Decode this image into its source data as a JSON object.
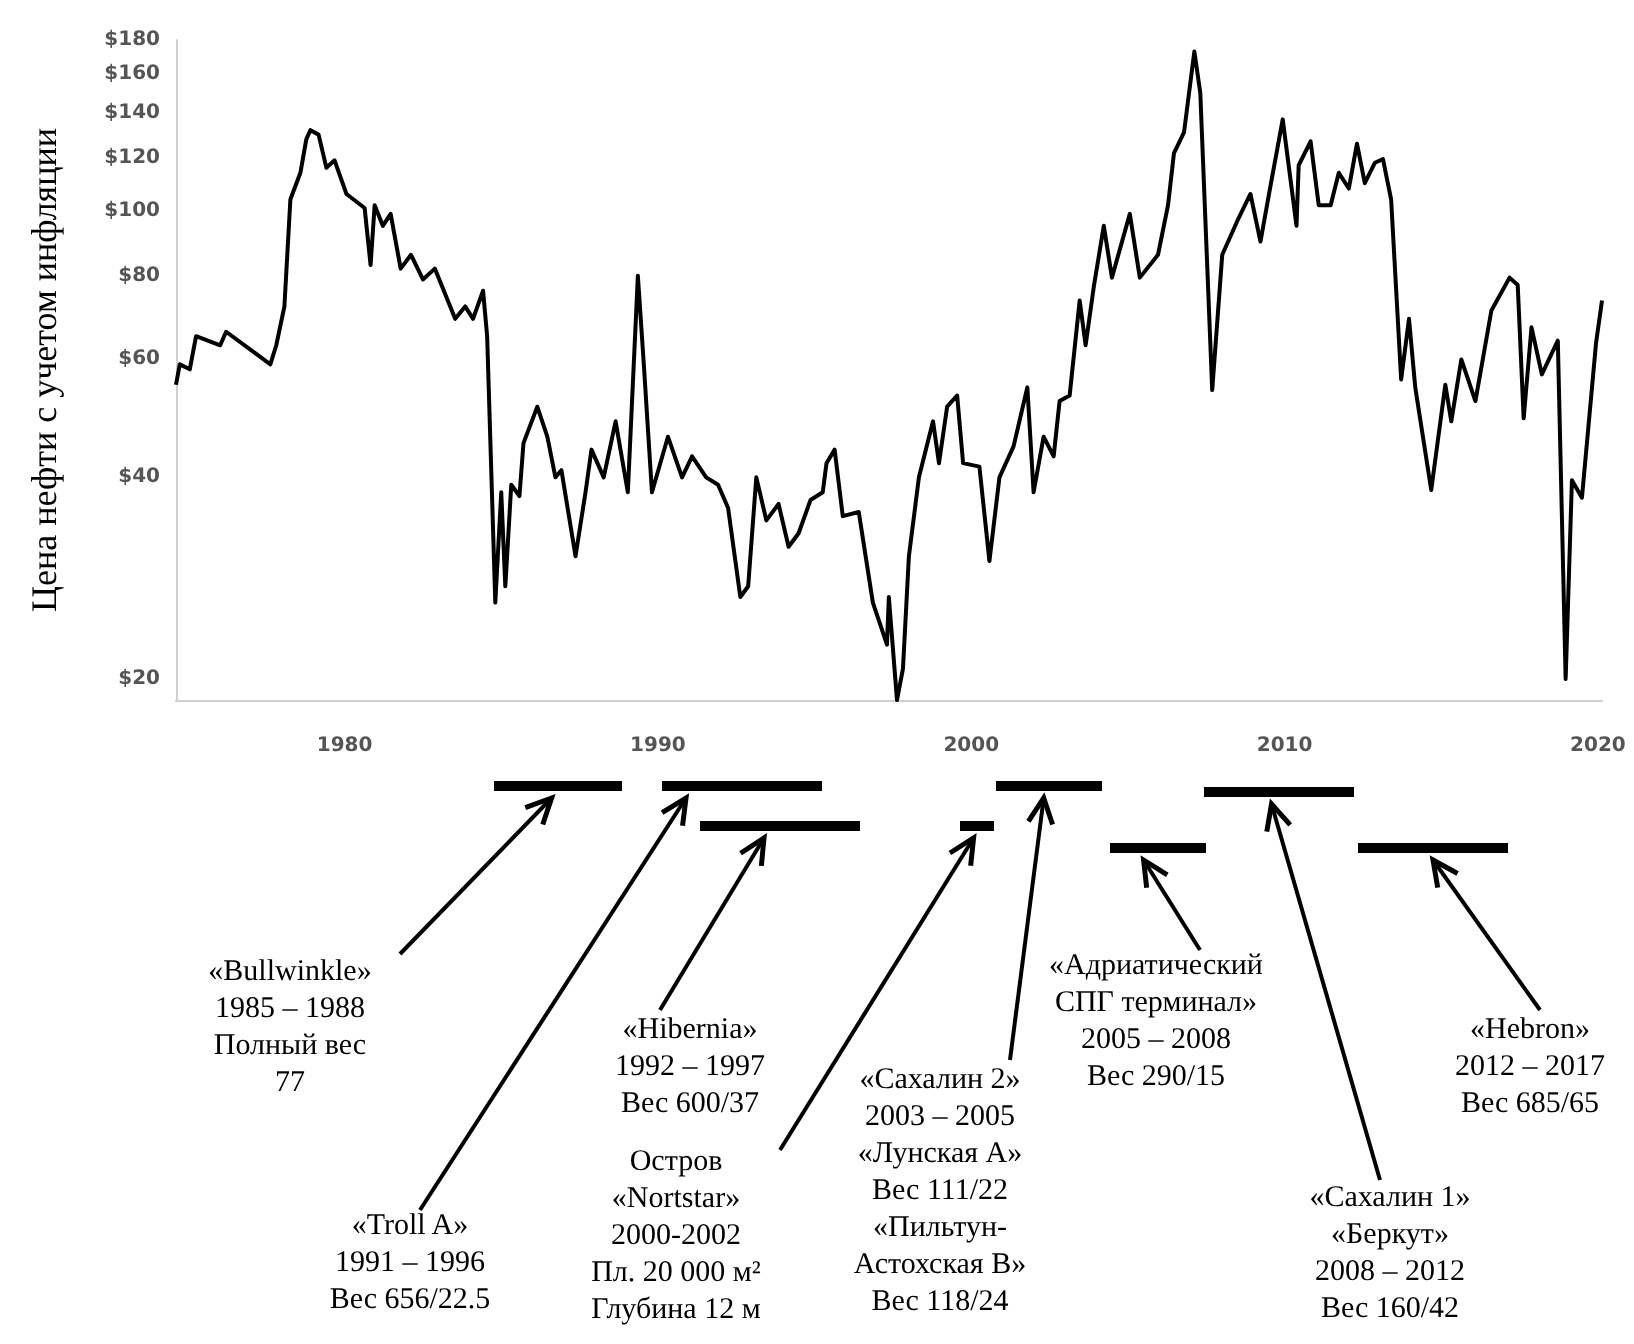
{
  "chart_data": {
    "type": "line",
    "ylabel": "Цена нефти с учетом инфляции",
    "log": "y",
    "marker": "none",
    "grid": false,
    "xlim": [
      1974.62,
      2020.13
    ],
    "xticks": [
      1980,
      1990,
      2000,
      2010,
      2020
    ],
    "ylim": [
      18.6,
      180
    ],
    "yticks": [
      {
        "value": 20,
        "label": "$20"
      },
      {
        "value": 40,
        "label": "$40"
      },
      {
        "value": 60,
        "label": "$60"
      },
      {
        "value": 80,
        "label": "$80"
      },
      {
        "value": 100,
        "label": "$100"
      },
      {
        "value": 120,
        "label": "$120"
      },
      {
        "value": 140,
        "label": "$140"
      },
      {
        "value": 160,
        "label": "$160"
      },
      {
        "value": 180,
        "label": "$180"
      }
    ],
    "series": [
      {
        "color": "#000000",
        "x": [
          1974.62,
          1974.74,
          1975.06,
          1975.26,
          1976.03,
          1976.22,
          1977.63,
          1977.82,
          1978.08,
          1978.27,
          1978.59,
          1978.78,
          1978.91,
          1979.17,
          1979.42,
          1979.68,
          1980.06,
          1980.64,
          1980.83,
          1980.96,
          1981.22,
          1981.47,
          1981.79,
          1982.12,
          1982.5,
          1982.88,
          1983.53,
          1983.85,
          1984.1,
          1984.42,
          1984.55,
          1984.81,
          1985.0,
          1985.13,
          1985.32,
          1985.58,
          1985.71,
          1986.15,
          1986.47,
          1986.73,
          1986.92,
          1987.37,
          1987.69,
          1987.88,
          1988.27,
          1988.65,
          1989.04,
          1989.36,
          1989.55,
          1989.81,
          1990.32,
          1990.77,
          1991.09,
          1991.54,
          1991.92,
          1992.24,
          1992.63,
          1992.88,
          1993.14,
          1993.46,
          1993.85,
          1994.17,
          1994.49,
          1994.87,
          1995.26,
          1995.38,
          1995.64,
          1995.9,
          1996.41,
          1996.86,
          1997.31,
          1997.37,
          1997.63,
          1997.82,
          1998.01,
          1998.33,
          1998.78,
          1998.97,
          1999.23,
          1999.55,
          1999.74,
          2000.26,
          2000.58,
          2000.9,
          2001.35,
          2001.79,
          2001.99,
          2002.31,
          2002.63,
          2002.82,
          2003.14,
          2003.46,
          2003.65,
          2003.91,
          2004.23,
          2004.49,
          2005.06,
          2005.38,
          2005.96,
          2006.28,
          2006.47,
          2006.79,
          2007.12,
          2007.31,
          2007.69,
          2008.01,
          2008.53,
          2008.91,
          2009.23,
          2009.55,
          2009.94,
          2010.38,
          2010.45,
          2010.83,
          2011.09,
          2011.47,
          2011.73,
          2012.05,
          2012.31,
          2012.56,
          2012.88,
          2013.14,
          2013.4,
          2013.72,
          2013.97,
          2014.17,
          2014.68,
          2015.13,
          2015.32,
          2015.64,
          2016.09,
          2016.6,
          2017.18,
          2017.44,
          2017.63,
          2017.88,
          2018.21,
          2018.72,
          2018.97,
          2019.17,
          2019.49,
          2019.94,
          2020.13
        ],
        "values": [
          55,
          59,
          58,
          65,
          63,
          66,
          59,
          63,
          72,
          104,
          114,
          128,
          132,
          130,
          116,
          119,
          106,
          101,
          83,
          102,
          95,
          99,
          82,
          86,
          79,
          82,
          69,
          72,
          69,
          76,
          65,
          26,
          38,
          27.5,
          39,
          37.5,
          45,
          51,
          46,
          40,
          41,
          30.5,
          38,
          44,
          40,
          48.5,
          38,
          80,
          59,
          38,
          46,
          40,
          43,
          40,
          39,
          36,
          26.5,
          27.5,
          40,
          34.5,
          36.5,
          31.5,
          33,
          37,
          38,
          42,
          44,
          35,
          35.5,
          26,
          22.5,
          26.5,
          18.6,
          20.7,
          30.5,
          40,
          48.5,
          42,
          51,
          53,
          42,
          41.5,
          30,
          40,
          44.5,
          54.5,
          38,
          46,
          43,
          52,
          53,
          73.5,
          63,
          77,
          95,
          79.5,
          99,
          79.5,
          86,
          102,
          122,
          131,
          173,
          150,
          54,
          86,
          97.5,
          106,
          90,
          109,
          137,
          95,
          117,
          127,
          102,
          102,
          114,
          108,
          126,
          110,
          118,
          119.5,
          104,
          56,
          69,
          54.5,
          38.3,
          55,
          48.5,
          60,
          52,
          71,
          79.5,
          77.5,
          49,
          67,
          57,
          64,
          20,
          39.6,
          37.3,
          63.5,
          73.5
        ]
      }
    ],
    "annotations": [
      "«Bullwinkle»\n1985 – 1988\nПолный вес\n77",
      "«Troll A»\n1991 – 1996\nВес 656/22.5",
      "«Hibernia»\n1992 – 1997\nВес 600/37",
      "Остров\n«Nortstar»\n2000-2002\nПл. 20 000 м²\nГлубина 12 м",
      "«Сахалин 2»\n2003 – 2005\n«Лунская А»\nВес 111/22\n«Пильтун-\nАстохская В»\nВес 118/24",
      "«Адриатический\nСПГ терминал»\n2005 – 2008\nВес 290/15",
      "«Сахалин 1»\n«Беркут»\n2008 – 2012\nВес 160/42",
      "«Hebron»\n2012 – 2017\nВес 685/65"
    ]
  }
}
